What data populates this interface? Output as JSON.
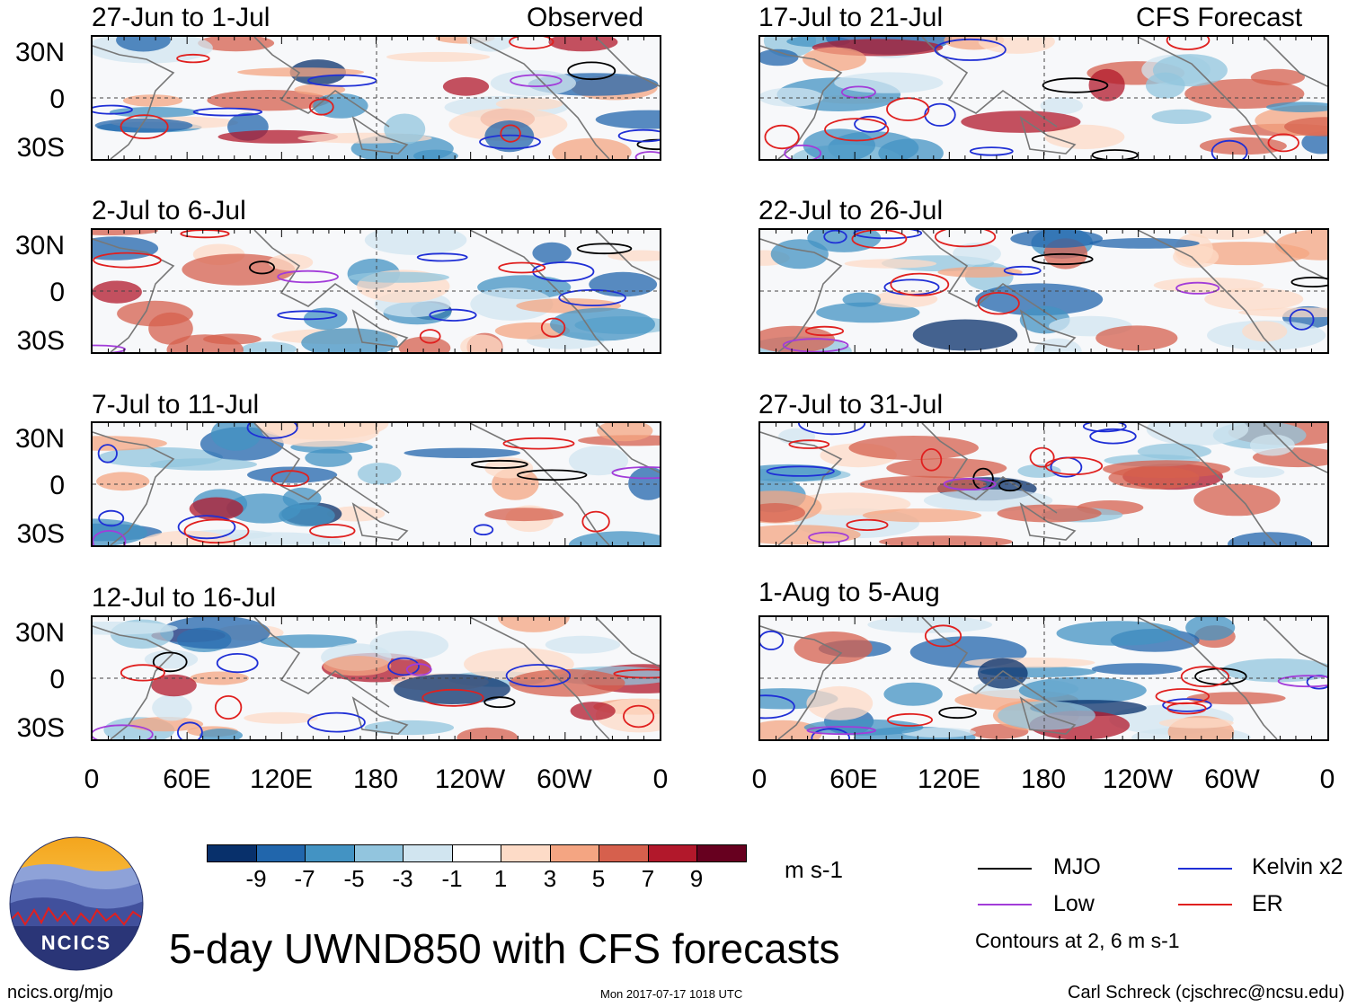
{
  "chart_data": {
    "type": "heatmap",
    "title": "5-day UWND850 with CFS forecasts",
    "variable": "850-hPa zonal wind anomaly",
    "units": "m s-1",
    "panels_left_label": "Observed",
    "panels_right_label": "CFS Forecast",
    "panels": [
      {
        "period": "27-Jun to 1-Jul",
        "source": "Observed"
      },
      {
        "period": "2-Jul to 6-Jul",
        "source": "Observed"
      },
      {
        "period": "7-Jul to 11-Jul",
        "source": "Observed"
      },
      {
        "period": "12-Jul to 16-Jul",
        "source": "Observed"
      },
      {
        "period": "17-Jul to 21-Jul",
        "source": "CFS Forecast"
      },
      {
        "period": "22-Jul to 26-Jul",
        "source": "CFS Forecast"
      },
      {
        "period": "27-Jul to 31-Jul",
        "source": "CFS Forecast"
      },
      {
        "period": "1-Aug to 5-Aug",
        "source": "CFS Forecast"
      }
    ],
    "lat_ticks": [
      "30N",
      "0",
      "30S"
    ],
    "lon_ticks": [
      "0",
      "60E",
      "120E",
      "180",
      "120W",
      "60W",
      "0"
    ],
    "colorbar": {
      "ticks": [
        "-9",
        "-7",
        "-5",
        "-3",
        "-1",
        "1",
        "3",
        "5",
        "7",
        "9"
      ],
      "colors": [
        "#08306b",
        "#2166ac",
        "#4393c3",
        "#92c5de",
        "#d1e5f0",
        "#ffffff",
        "#fddbc7",
        "#f4a582",
        "#d6604d",
        "#b2182b",
        "#67001f"
      ]
    },
    "legend": [
      {
        "label": "MJO",
        "color": "#000000"
      },
      {
        "label": "Kelvin x2",
        "color": "#1f2fd6"
      },
      {
        "label": "Low",
        "color": "#a23cd9"
      },
      {
        "label": "ER",
        "color": "#e0201f"
      }
    ],
    "contour_note": "Contours at 2, 6 m s-1"
  },
  "logo_text": "NCICS",
  "footer": {
    "url": "ncics.org/mjo",
    "timestamp": "Mon 2017-07-17 1018 UTC",
    "author": "Carl Schreck (cjschrec@ncsu.edu)"
  }
}
